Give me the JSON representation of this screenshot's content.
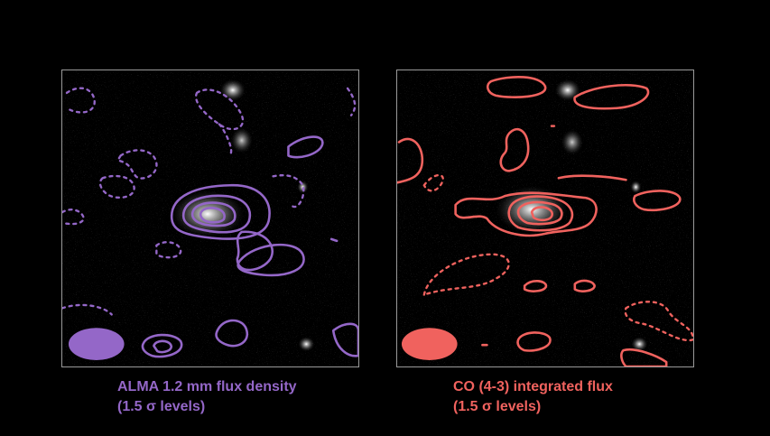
{
  "colors": {
    "alma": "#9467c8",
    "co": "#f0625e",
    "frame": "#9a9a9a",
    "background": "#000000"
  },
  "panels": [
    {
      "id": "alma",
      "caption_line1": "ALMA 1.2 mm flux density",
      "caption_line2": "(1.5 σ levels)",
      "color_key": "alma"
    },
    {
      "id": "co",
      "caption_line1": "CO (4-3) integrated flux",
      "caption_line2": "(1.5 σ levels)",
      "color_key": "co"
    }
  ]
}
